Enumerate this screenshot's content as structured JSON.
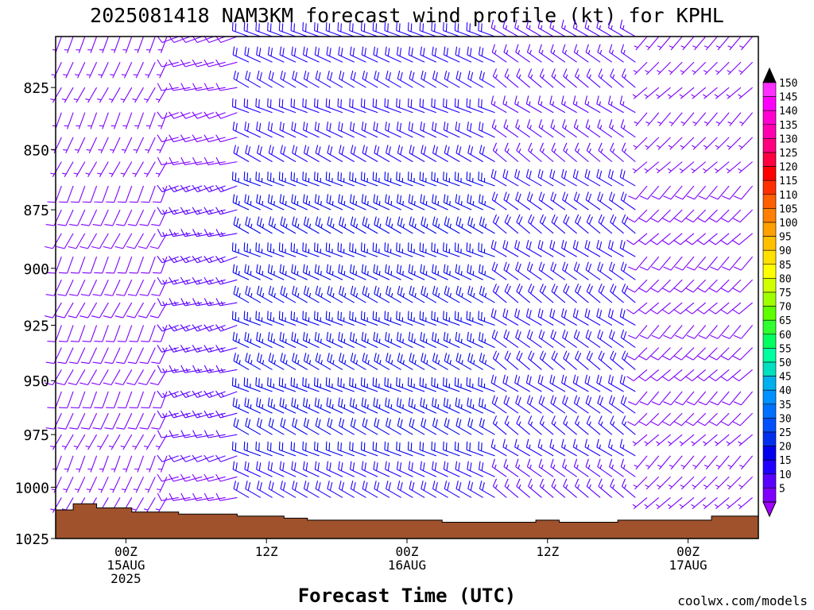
{
  "title": "2025081418 NAM3KM forecast wind profile (kt) for KPHL",
  "watermark": "coolwx.com/models",
  "watermark_color": "#cc3333",
  "chart_data": {
    "type": "wind_barb_time_height",
    "title": "2025081418 NAM3KM forecast wind profile (kt) for KPHL",
    "xlabel": "Forecast Time (UTC)",
    "ylabel": "",
    "x_ticks": [
      {
        "hours": 6,
        "lines": [
          "00Z",
          "15AUG",
          "2025"
        ]
      },
      {
        "hours": 18,
        "lines": [
          "12Z"
        ]
      },
      {
        "hours": 30,
        "lines": [
          "00Z",
          "16AUG"
        ]
      },
      {
        "hours": 42,
        "lines": [
          "12Z"
        ]
      },
      {
        "hours": 54,
        "lines": [
          "00Z",
          "17AUG"
        ]
      }
    ],
    "xlim_hours": [
      0,
      60
    ],
    "y_ticks": [
      "825",
      "850",
      "875",
      "900",
      "925",
      "950",
      "975",
      "1000",
      "1025"
    ],
    "ylim_hPa": [
      805,
      1025
    ],
    "y_scale": "log",
    "units": "kt",
    "colorbar": {
      "levels": [
        "5",
        "10",
        "15",
        "20",
        "25",
        "30",
        "35",
        "40",
        "45",
        "50",
        "55",
        "60",
        "65",
        "70",
        "75",
        "80",
        "85",
        "90",
        "95",
        "100",
        "105",
        "110",
        "115",
        "120",
        "125",
        "130",
        "135",
        "140",
        "145",
        "150"
      ],
      "colors": [
        "#7f00ff",
        "#5a00ff",
        "#2000ff",
        "#0000ee",
        "#0030ee",
        "#0050ff",
        "#0070ff",
        "#0090ff",
        "#00b0ee",
        "#00e0c0",
        "#00ffa0",
        "#00ff60",
        "#30ff30",
        "#60ff00",
        "#a0ff00",
        "#d0ff00",
        "#ffff00",
        "#ffe000",
        "#ffc000",
        "#ffa000",
        "#ff8000",
        "#ff6000",
        "#ff3000",
        "#ff0000",
        "#ff0040",
        "#ff0080",
        "#ff00b0",
        "#ff00d0",
        "#ff00ff",
        "#ff30ff"
      ],
      "over_color": "#000000",
      "under_color": "#a000ff"
    },
    "surface_pressure": {
      "hours": [
        0,
        1.5,
        3.5,
        6.5,
        10.5,
        15.5,
        19.5,
        21.5,
        23,
        26,
        30,
        33,
        36,
        39,
        41,
        43,
        48,
        50,
        53,
        56,
        59,
        60
      ],
      "values_hPa": [
        1011,
        1008,
        1010,
        1012,
        1013,
        1014,
        1015,
        1016,
        1016,
        1016,
        1016,
        1017,
        1017,
        1017,
        1016,
        1017,
        1016,
        1016,
        1016,
        1014,
        1014,
        1014
      ],
      "color": "#a0522d"
    },
    "barb_levels_hPa": [
      805,
      815,
      825,
      835,
      845,
      855,
      865,
      875,
      885,
      895,
      905,
      915,
      925,
      935,
      945,
      955,
      965,
      975,
      985,
      995,
      1005
    ],
    "barb_times_hours_step": 1,
    "wind_segments": [
      {
        "hours": [
          0,
          10
        ],
        "direction_deg": 200,
        "speed_kt": 10
      },
      {
        "hours": [
          10,
          16
        ],
        "direction_deg": 250,
        "speed_kt": 15
      },
      {
        "hours": [
          16,
          38
        ],
        "direction_deg": 290,
        "speed_kt": 25
      },
      {
        "hours": [
          38,
          50
        ],
        "direction_deg": 300,
        "speed_kt": 20
      },
      {
        "hours": [
          50,
          60
        ],
        "direction_deg": 220,
        "speed_kt": 10
      }
    ]
  }
}
